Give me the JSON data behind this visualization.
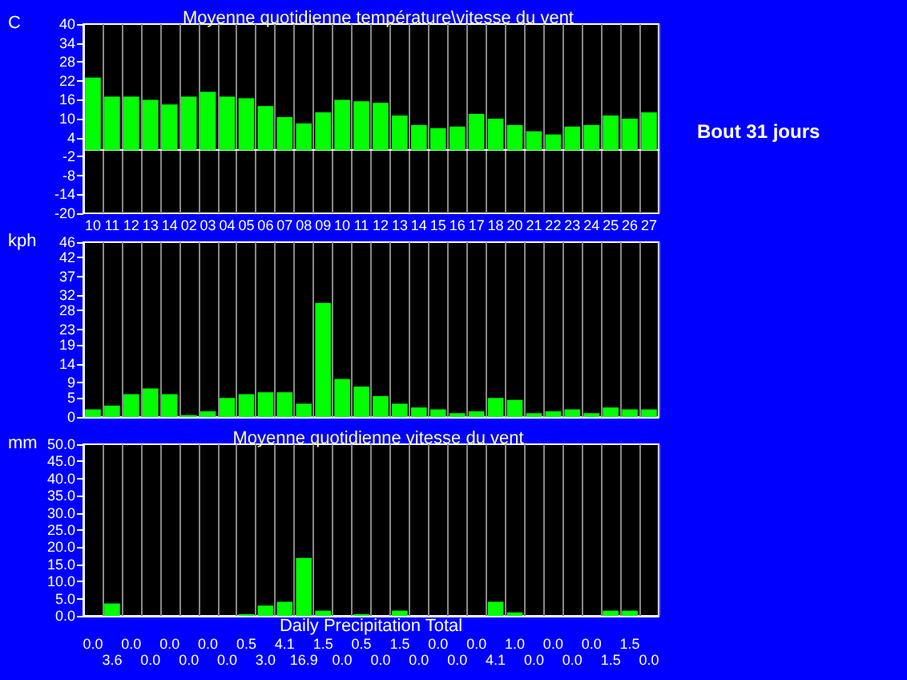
{
  "chart_data": [
    {
      "type": "bar",
      "title": "Moyenne quotidienne température\\vitesse du vent",
      "ylabel": "C",
      "annotations": [
        "Bout 31 jours"
      ],
      "categories": [
        "10",
        "11",
        "12",
        "13",
        "14",
        "02",
        "03",
        "04",
        "05",
        "06",
        "07",
        "08",
        "09",
        "10",
        "11",
        "12",
        "13",
        "14",
        "15",
        "16",
        "17",
        "18",
        "20",
        "21",
        "22",
        "23",
        "24",
        "25",
        "26",
        "27"
      ],
      "values": [
        23,
        17,
        17,
        16,
        14.5,
        17,
        18.5,
        17,
        16.5,
        14,
        10.5,
        8.5,
        12,
        16,
        15.5,
        15,
        11,
        8,
        7,
        7.5,
        11.5,
        10,
        8,
        6,
        5,
        7.5,
        8,
        11,
        10,
        12
      ],
      "color": "#00ff00",
      "ylim": [
        -20,
        40
      ],
      "yticks": [
        -20,
        -14,
        -8,
        -2,
        4,
        10,
        16,
        22,
        28,
        34,
        40
      ],
      "grid": "x"
    },
    {
      "type": "bar",
      "ylabel": "kph",
      "tick_labels": "y",
      "categories": [
        "10",
        "11",
        "12",
        "13",
        "14",
        "02",
        "03",
        "04",
        "05",
        "06",
        "07",
        "08",
        "09",
        "10",
        "11",
        "12",
        "13",
        "14",
        "15",
        "16",
        "17",
        "18",
        "20",
        "21",
        "22",
        "23",
        "24",
        "25",
        "26",
        "27"
      ],
      "values": [
        2,
        3,
        6,
        7.5,
        6,
        0.5,
        1.5,
        5,
        6,
        6.5,
        6.5,
        3.5,
        30,
        10,
        8,
        5.5,
        3.5,
        2.5,
        2,
        1,
        1.5,
        5,
        4.5,
        1,
        1.5,
        2,
        1,
        2.5,
        2,
        2
      ],
      "color": "#00ff00",
      "ylim": [
        0,
        46
      ],
      "yticks": [
        0,
        5,
        9,
        14,
        19,
        23,
        28,
        32,
        37,
        42,
        46
      ],
      "grid": "x"
    },
    {
      "type": "bar",
      "title": "Moyenne quotidienne vitesse du vent",
      "ylabel": "mm",
      "xlabel": "Daily Precipitation Total",
      "tick_labels": "y",
      "categories": [
        "10",
        "11",
        "12",
        "13",
        "14",
        "02",
        "03",
        "04",
        "05",
        "06",
        "07",
        "08",
        "09",
        "10",
        "11",
        "12",
        "13",
        "14",
        "15",
        "16",
        "17",
        "18",
        "20",
        "21",
        "22",
        "23",
        "24",
        "25",
        "26",
        "27"
      ],
      "values": [
        0,
        3.6,
        0,
        0,
        0,
        0,
        0,
        0,
        0.5,
        3.0,
        4.1,
        16.9,
        1.5,
        0,
        0.5,
        0,
        1.5,
        0,
        0,
        0,
        0,
        4.1,
        1.0,
        0,
        0,
        0,
        0,
        1.5,
        1.5,
        0
      ],
      "value_labels": [
        "0.0",
        "3.6",
        "0.0",
        "0.0",
        "0.0",
        "0.0",
        "0.0",
        "0.0",
        "0.5",
        "3.0",
        "4.1",
        "16.9",
        "1.5",
        "0.0",
        "0.5",
        "0.0",
        "1.5",
        "0.0",
        "0.0",
        "0.0",
        "0.0",
        "4.1",
        "1.0",
        "0.0",
        "0.0",
        "0.0",
        "0.0",
        "1.5",
        "1.5",
        "0.0"
      ],
      "color": "#00ff00",
      "ylim": [
        0,
        50
      ],
      "yticks": [
        {
          "value": 0,
          "label": "0.0"
        },
        {
          "value": 5,
          "label": "5.0"
        },
        {
          "value": 10,
          "label": "10.0"
        },
        {
          "value": 15,
          "label": "15.0"
        },
        {
          "value": 20,
          "label": "20.0"
        },
        {
          "value": 25,
          "label": "25.0"
        },
        {
          "value": 30,
          "label": "30.0"
        },
        {
          "value": 35,
          "label": "35.0"
        },
        {
          "value": 40,
          "label": "40.0"
        },
        {
          "value": 45,
          "label": "45.0"
        },
        {
          "value": 50,
          "label": "50.0"
        }
      ],
      "grid": "x"
    }
  ]
}
